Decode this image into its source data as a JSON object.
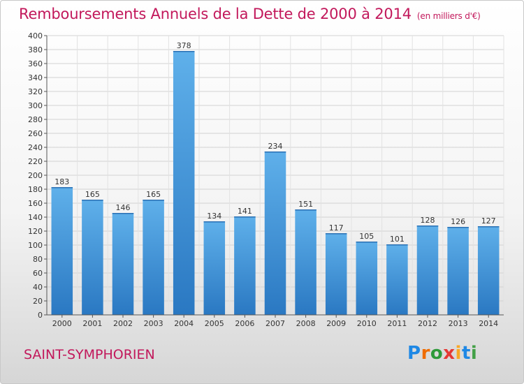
{
  "chart_data": {
    "type": "bar",
    "title": "Remboursements Annuels de la Dette de 2000 à 2014",
    "unit_label": "(en milliers d'€)",
    "categories": [
      "2000",
      "2001",
      "2002",
      "2003",
      "2004",
      "2005",
      "2006",
      "2007",
      "2008",
      "2009",
      "2010",
      "2011",
      "2012",
      "2013",
      "2014"
    ],
    "values": [
      183,
      165,
      146,
      165,
      378,
      134,
      141,
      234,
      151,
      117,
      105,
      101,
      128,
      126,
      127
    ],
    "ylim": [
      0,
      400
    ],
    "ytick_step": 20,
    "grid": true,
    "bar_color": "#3d8fd6"
  },
  "town": "SAINT-SYMPHORIEN",
  "brand": {
    "letters": [
      "P",
      "r",
      "o",
      "x",
      "i",
      "t",
      "i"
    ],
    "colors": [
      "#1e88e5",
      "#ef6c00",
      "#2e9a3a",
      "#e53935",
      "#f9a825",
      "#1e88e5",
      "#43a047"
    ]
  }
}
